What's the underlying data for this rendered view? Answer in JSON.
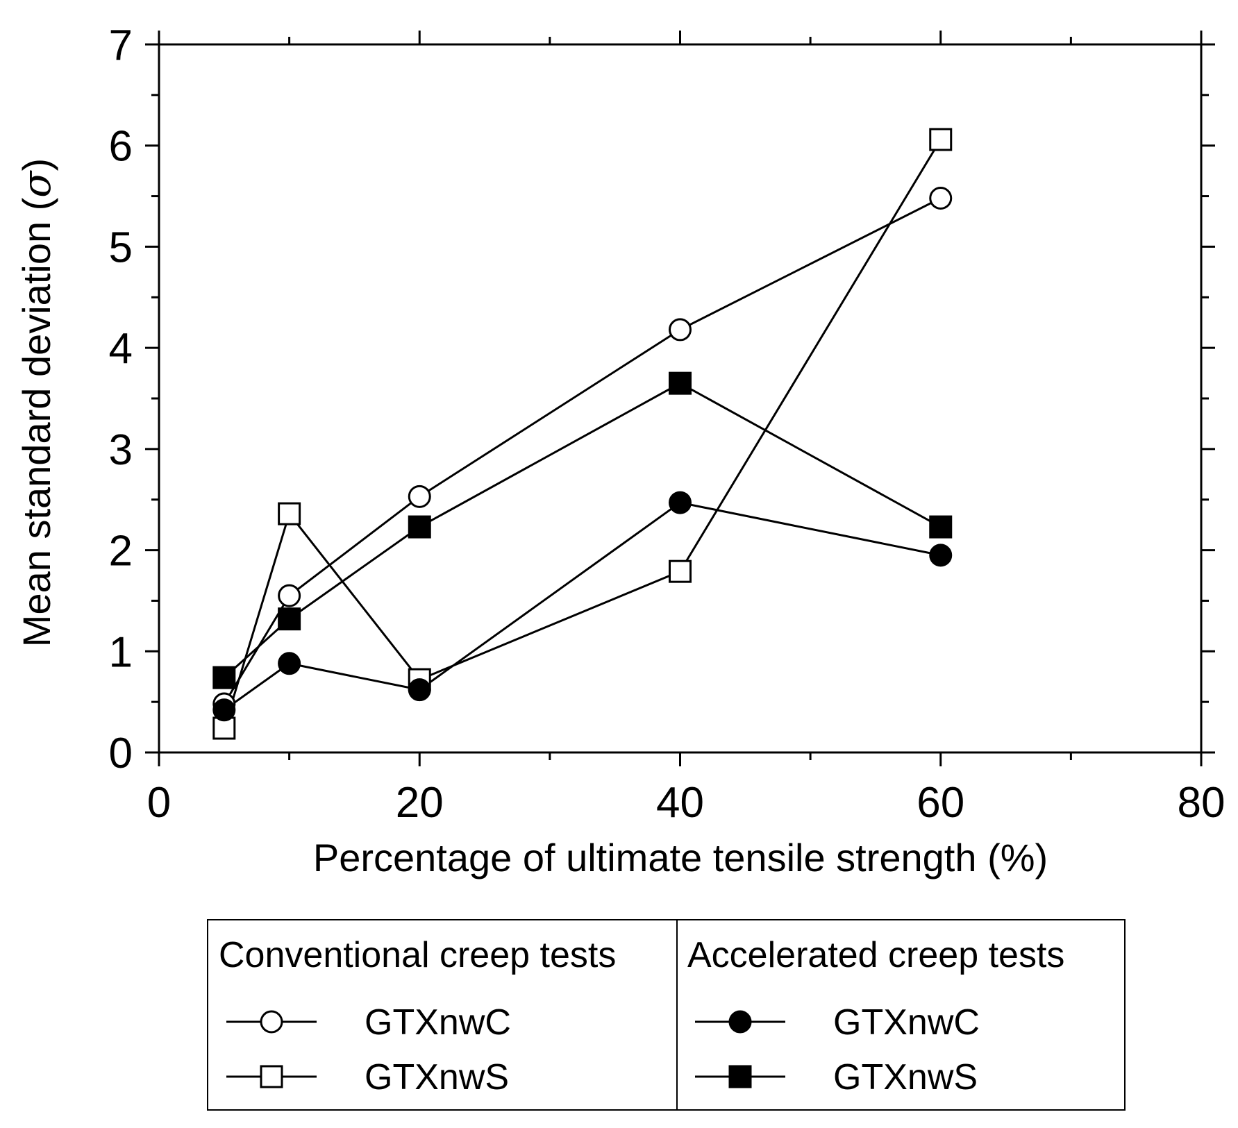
{
  "chart_data": {
    "type": "line",
    "title": "",
    "xlabel": "Percentage of ultimate tensile strength (%)",
    "ylabel_main": "Mean standard deviation (",
    "ylabel_symbol": "σ",
    "ylabel_end": ")",
    "xlim": [
      0,
      80
    ],
    "ylim": [
      0,
      7
    ],
    "x_ticks": [
      0,
      20,
      40,
      60,
      80
    ],
    "y_ticks": [
      0,
      1,
      2,
      3,
      4,
      5,
      6,
      7
    ],
    "x_tick_labels": [
      "0",
      "20",
      "40",
      "60",
      "80"
    ],
    "y_tick_labels": [
      "0",
      "1",
      "2",
      "3",
      "4",
      "5",
      "6",
      "7"
    ],
    "grid": false,
    "legend_placement": "bottom-center",
    "legend": {
      "groups": [
        {
          "title": "Conventional creep tests",
          "entries": [
            {
              "series_index": 0,
              "label": "GTXnwC"
            },
            {
              "series_index": 1,
              "label": "GTXnwS"
            }
          ]
        },
        {
          "title": "Accelerated creep tests",
          "entries": [
            {
              "series_index": 2,
              "label": "GTXnwC"
            },
            {
              "series_index": 3,
              "label": "GTXnwS"
            }
          ]
        }
      ]
    },
    "series": [
      {
        "name": "Conventional GTXnwC",
        "marker": "circle",
        "filled": false,
        "x": [
          5,
          10,
          20,
          40,
          60
        ],
        "y": [
          0.48,
          1.55,
          2.53,
          4.18,
          5.48
        ]
      },
      {
        "name": "Conventional GTXnwS",
        "marker": "square",
        "filled": false,
        "x": [
          5,
          10,
          20,
          40,
          60
        ],
        "y": [
          0.24,
          2.36,
          0.72,
          1.79,
          6.06
        ]
      },
      {
        "name": "Accelerated GTXnwC",
        "marker": "circle",
        "filled": true,
        "x": [
          5,
          10,
          20,
          40,
          60
        ],
        "y": [
          0.42,
          0.88,
          0.62,
          2.47,
          1.95
        ]
      },
      {
        "name": "Accelerated GTXnwS",
        "marker": "square",
        "filled": true,
        "x": [
          5,
          10,
          20,
          40,
          60
        ],
        "y": [
          0.74,
          1.32,
          2.23,
          3.65,
          2.23
        ]
      }
    ]
  }
}
